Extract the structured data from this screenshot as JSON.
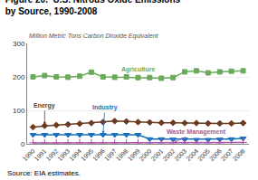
{
  "chart_data": {
    "type": "line",
    "title": "Figure 20.  U.S. Nitrous Oxide Emissions\nby Source, 1990-2008",
    "subtitle": "Million Metric Tons Carbon Dioxide Equivalent",
    "source": "Source: EIA estimates.",
    "x": [
      1990,
      1991,
      1992,
      1993,
      1994,
      1995,
      1996,
      1997,
      1998,
      1999,
      2000,
      2001,
      2002,
      2003,
      2004,
      2005,
      2006,
      2007,
      2008
    ],
    "series": [
      {
        "name": "Agriculture",
        "color": "#6aaa5a",
        "marker": "square",
        "values": [
          200,
          204,
          200,
          199,
          202,
          214,
          200,
          199,
          200,
          198,
          198,
          196,
          198,
          215,
          218,
          212,
          215,
          217,
          218
        ]
      },
      {
        "name": "Energy",
        "color": "#6b3a1f",
        "marker": "diamond",
        "values": [
          50,
          54,
          56,
          58,
          60,
          62,
          65,
          68,
          67,
          65,
          64,
          63,
          63,
          62,
          62,
          61,
          61,
          61,
          62
        ]
      },
      {
        "name": "Industry",
        "color": "#1a6fbb",
        "marker": "triangle-down",
        "values": [
          27,
          27,
          27,
          27,
          27,
          27,
          27,
          27,
          27,
          27,
          14,
          14,
          13,
          13,
          12,
          12,
          13,
          14,
          16
        ]
      },
      {
        "name": "Waste Management",
        "color": "#aa55aa",
        "marker": "plus",
        "values": [
          3,
          3,
          3,
          3,
          3,
          3,
          3,
          3,
          3,
          3,
          3,
          3,
          3,
          3,
          3,
          3,
          3,
          4,
          4
        ]
      }
    ],
    "xlim": [
      1989.5,
      2008.5
    ],
    "xticks": [
      1990,
      1991,
      1992,
      1993,
      1994,
      1995,
      1996,
      1997,
      1998,
      1999,
      2000,
      2001,
      2002,
      2003,
      2004,
      2005,
      2006,
      2007,
      2008
    ],
    "ylim": [
      0,
      300
    ],
    "yticks": [
      0,
      100,
      200,
      300
    ],
    "grid": true
  }
}
